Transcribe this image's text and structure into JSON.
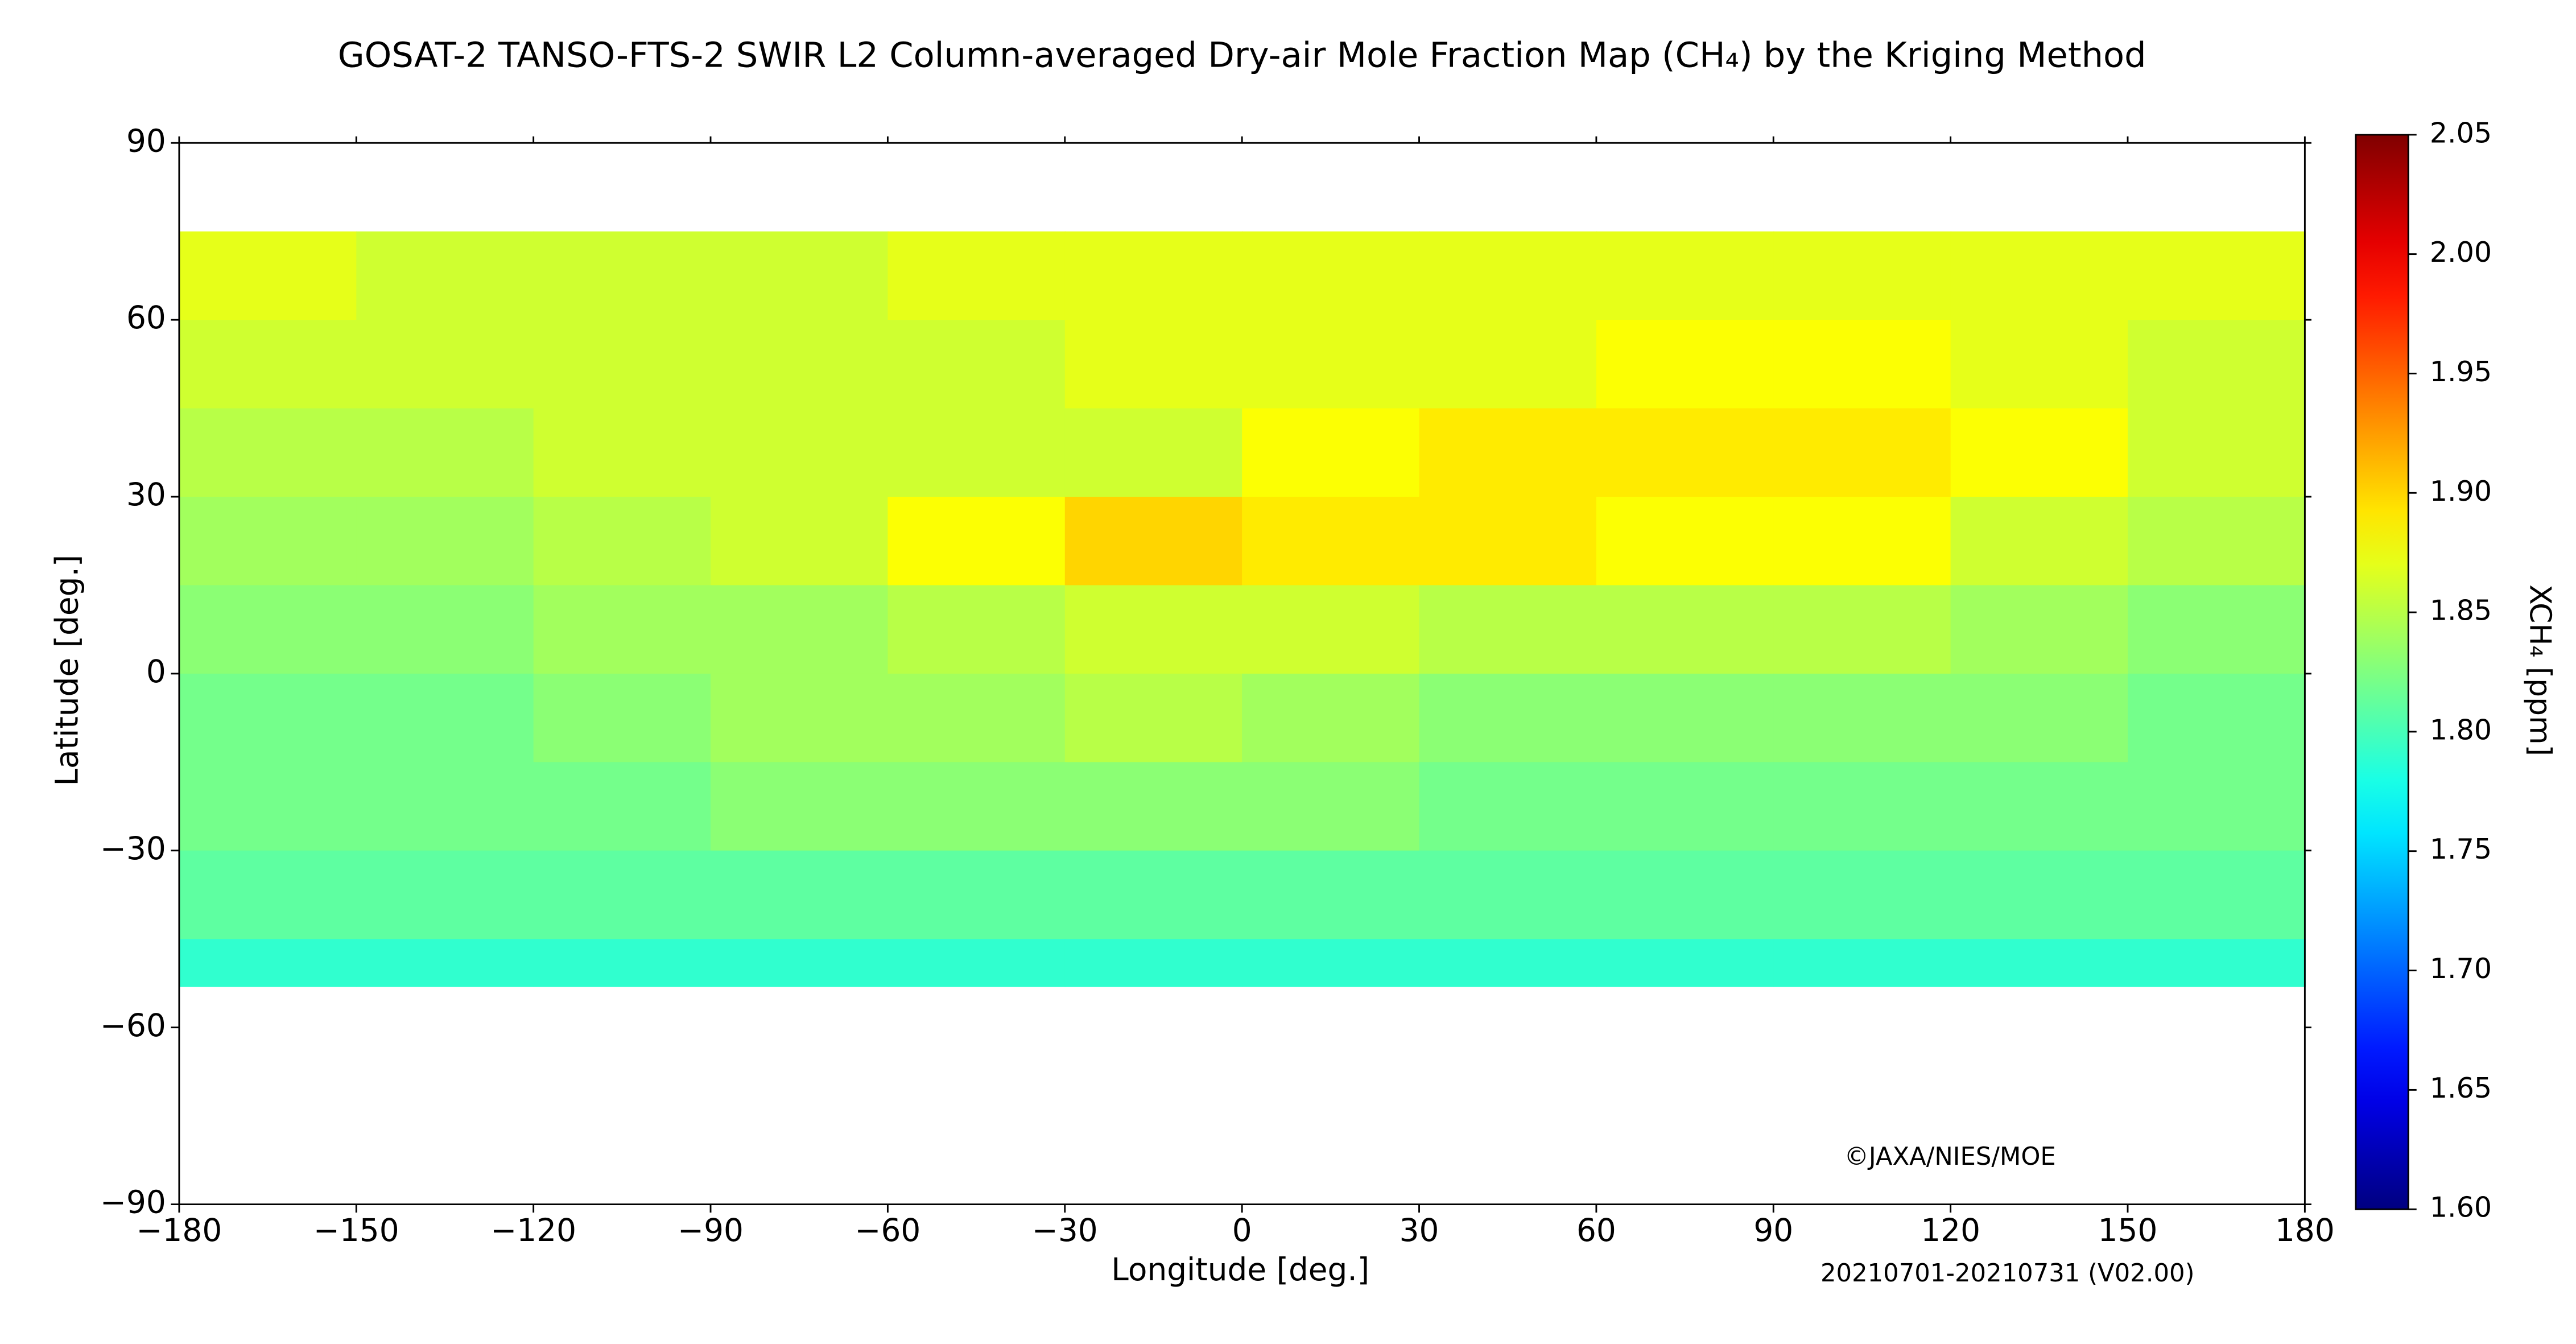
{
  "chart_data": {
    "type": "heatmap",
    "title": "GOSAT-2 TANSO-FTS-2 SWIR L2 Column-averaged Dry-air Mole Fraction Map (CH₄) by the Kriging Method",
    "x_label": "Longitude [deg.]",
    "y_label": "Latitude [deg.]",
    "credit": "©JAXA/NIES/MOE",
    "period": "20210701-20210731 (V02.00)",
    "xlim": [
      -180,
      180
    ],
    "ylim": [
      -90,
      90
    ],
    "xticks": [
      {
        "value": -180,
        "label": "−180"
      },
      {
        "value": -150,
        "label": "−150"
      },
      {
        "value": -120,
        "label": "−120"
      },
      {
        "value": -90,
        "label": "−90"
      },
      {
        "value": -60,
        "label": "−60"
      },
      {
        "value": -30,
        "label": "−30"
      },
      0,
      30,
      60,
      90,
      120,
      150,
      180
    ],
    "yticks": [
      {
        "value": -90,
        "label": "−90"
      },
      {
        "value": -60,
        "label": "−60"
      },
      {
        "value": -30,
        "label": "−30"
      },
      0,
      30,
      60,
      90
    ],
    "x_edges": [
      -180,
      -150,
      -120,
      -90,
      -60,
      -30,
      0,
      30,
      60,
      90,
      120,
      150,
      180
    ],
    "y_edges": [
      75,
      60,
      45,
      30,
      15,
      0,
      -15,
      -30,
      -45,
      -53
    ],
    "field": [
      [
        1.87,
        1.86,
        1.86,
        1.86,
        1.87,
        1.87,
        1.87,
        1.87,
        1.87,
        1.87,
        1.87,
        1.87
      ],
      [
        1.86,
        1.86,
        1.86,
        1.86,
        1.86,
        1.87,
        1.87,
        1.87,
        1.88,
        1.88,
        1.87,
        1.86
      ],
      [
        1.85,
        1.85,
        1.86,
        1.86,
        1.86,
        1.86,
        1.88,
        1.89,
        1.89,
        1.89,
        1.88,
        1.86
      ],
      [
        1.84,
        1.84,
        1.85,
        1.86,
        1.88,
        1.9,
        1.89,
        1.89,
        1.88,
        1.88,
        1.86,
        1.85
      ],
      [
        1.83,
        1.83,
        1.84,
        1.84,
        1.85,
        1.86,
        1.86,
        1.85,
        1.85,
        1.85,
        1.84,
        1.83
      ],
      [
        1.82,
        1.82,
        1.83,
        1.84,
        1.84,
        1.85,
        1.84,
        1.83,
        1.83,
        1.83,
        1.83,
        1.82
      ],
      [
        1.82,
        1.82,
        1.82,
        1.83,
        1.83,
        1.83,
        1.83,
        1.82,
        1.82,
        1.82,
        1.82,
        1.82
      ],
      [
        1.81,
        1.81,
        1.81,
        1.81,
        1.81,
        1.81,
        1.81,
        1.81,
        1.81,
        1.81,
        1.81,
        1.81
      ],
      [
        1.79,
        1.79,
        1.79,
        1.79,
        1.79,
        1.79,
        1.79,
        1.79,
        1.79,
        1.79,
        1.79,
        1.79
      ]
    ],
    "colorbar": {
      "label": "XCH₄ [ppm]",
      "lim": [
        1.6,
        2.05
      ],
      "ticks": [
        {
          "value": 1.6,
          "label": "1.60"
        },
        {
          "value": 1.65,
          "label": "1.65"
        },
        {
          "value": 1.7,
          "label": "1.70"
        },
        {
          "value": 1.75,
          "label": "1.75"
        },
        {
          "value": 1.8,
          "label": "1.80"
        },
        {
          "value": 1.85,
          "label": "1.85"
        },
        {
          "value": 1.9,
          "label": "1.90"
        },
        {
          "value": 1.95,
          "label": "1.95"
        },
        {
          "value": 2.0,
          "label": "2.00"
        },
        {
          "value": 2.05,
          "label": "2.05"
        }
      ],
      "colormap": "jet"
    }
  }
}
